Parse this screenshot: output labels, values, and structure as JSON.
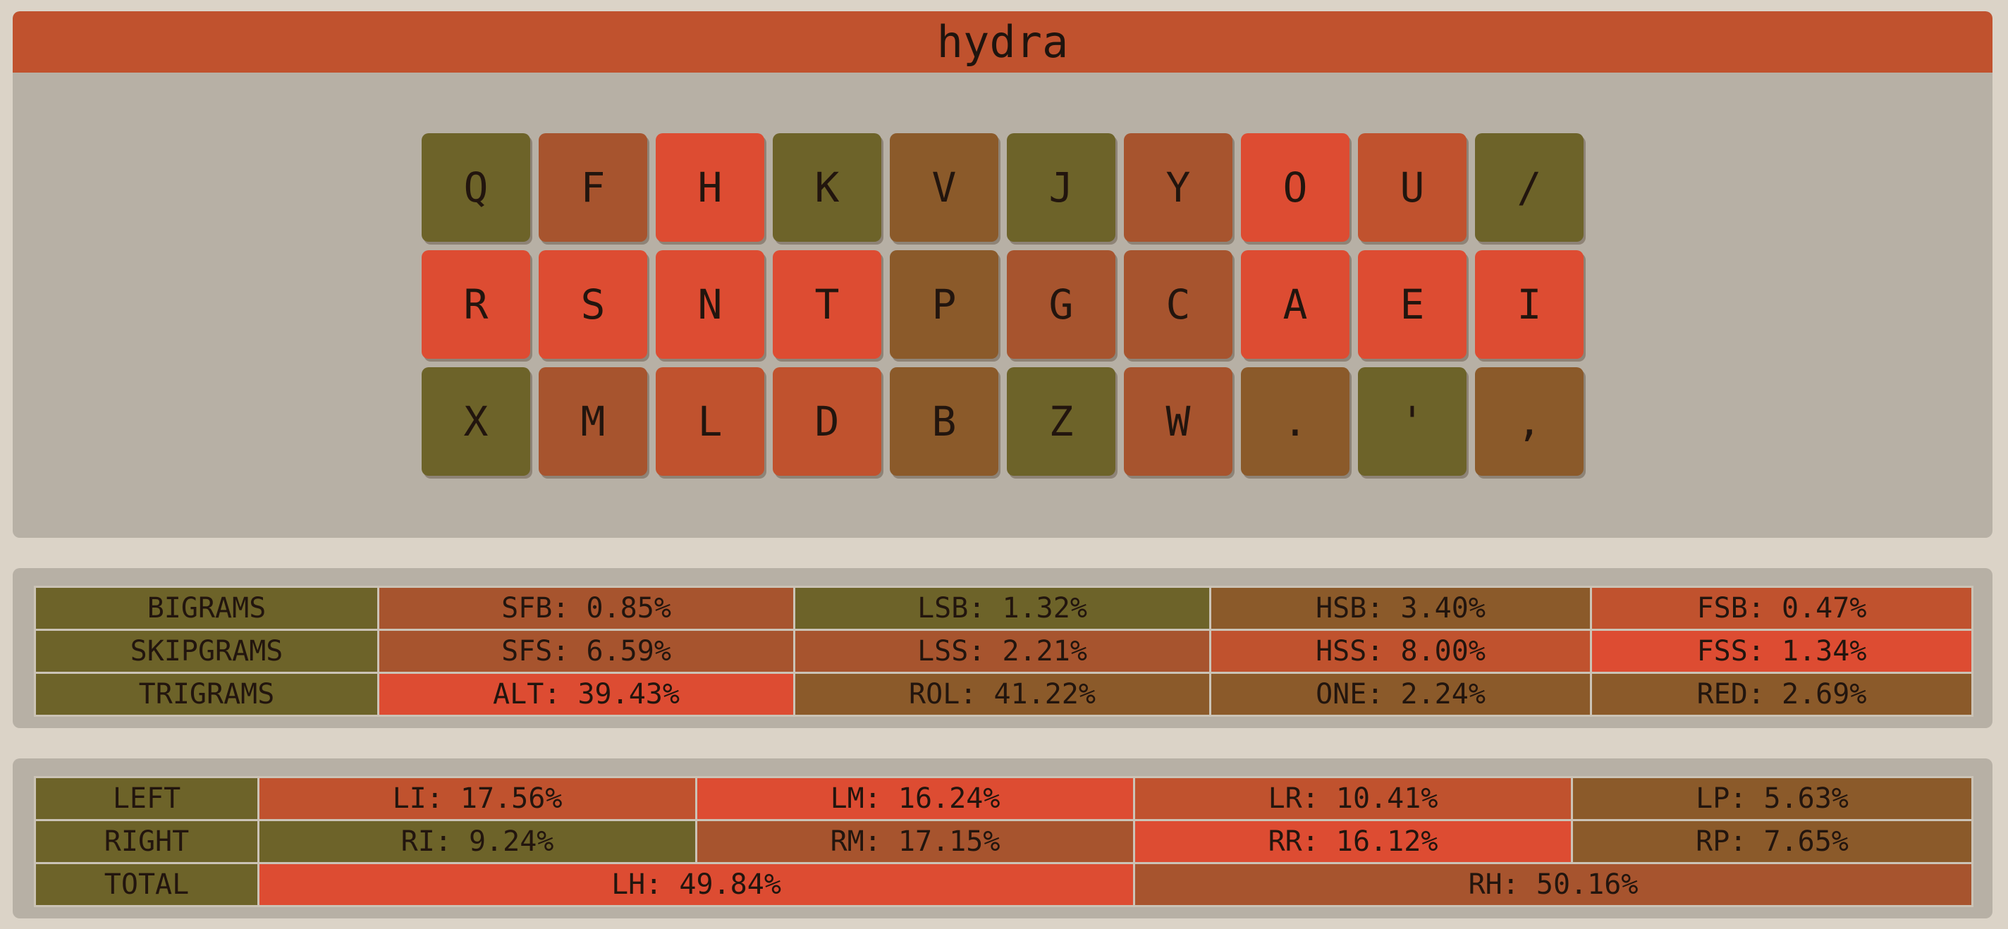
{
  "title": "hydra",
  "keyboard": {
    "rows": [
      [
        {
          "label": "Q",
          "color": "olive"
        },
        {
          "label": "F",
          "color": "rust"
        },
        {
          "label": "H",
          "color": "red"
        },
        {
          "label": "K",
          "color": "olive"
        },
        {
          "label": "V",
          "color": "brown"
        },
        {
          "label": "J",
          "color": "olive"
        },
        {
          "label": "Y",
          "color": "rust"
        },
        {
          "label": "O",
          "color": "red"
        },
        {
          "label": "U",
          "color": "burnt"
        },
        {
          "label": "/",
          "color": "olive"
        }
      ],
      [
        {
          "label": "R",
          "color": "red"
        },
        {
          "label": "S",
          "color": "red"
        },
        {
          "label": "N",
          "color": "red"
        },
        {
          "label": "T",
          "color": "red"
        },
        {
          "label": "P",
          "color": "brown"
        },
        {
          "label": "G",
          "color": "rust"
        },
        {
          "label": "C",
          "color": "rust"
        },
        {
          "label": "A",
          "color": "red"
        },
        {
          "label": "E",
          "color": "red"
        },
        {
          "label": "I",
          "color": "red"
        }
      ],
      [
        {
          "label": "X",
          "color": "olive"
        },
        {
          "label": "M",
          "color": "rust"
        },
        {
          "label": "L",
          "color": "burnt"
        },
        {
          "label": "D",
          "color": "burnt"
        },
        {
          "label": "B",
          "color": "brown"
        },
        {
          "label": "Z",
          "color": "olive"
        },
        {
          "label": "W",
          "color": "rust"
        },
        {
          "label": ".",
          "color": "brown"
        },
        {
          "label": "'",
          "color": "olive"
        },
        {
          "label": ",",
          "color": "brown"
        }
      ]
    ]
  },
  "colors": {
    "olive": "#6d6329",
    "brown": "#8b5a2a",
    "rust": "#a7542e",
    "burnt": "#c0522e",
    "red": "#dd4c32",
    "background": "#dbd3c7",
    "panel": "#b7b0a5"
  },
  "stats": {
    "rows": [
      {
        "label": "BIGRAMS",
        "cells": [
          {
            "text": "SFB: 0.85%",
            "color": "rust"
          },
          {
            "text": "LSB: 1.32%",
            "color": "olive"
          },
          {
            "text": "HSB: 3.40%",
            "color": "brown"
          },
          {
            "text": "FSB: 0.47%",
            "color": "burnt"
          }
        ]
      },
      {
        "label": "SKIPGRAMS",
        "cells": [
          {
            "text": "SFS: 6.59%",
            "color": "rust"
          },
          {
            "text": "LSS: 2.21%",
            "color": "rust"
          },
          {
            "text": "HSS: 8.00%",
            "color": "burnt"
          },
          {
            "text": "FSS: 1.34%",
            "color": "red"
          }
        ]
      },
      {
        "label": "TRIGRAMS",
        "cells": [
          {
            "text": "ALT: 39.43%",
            "color": "red"
          },
          {
            "text": "ROL: 41.22%",
            "color": "brown"
          },
          {
            "text": "ONE: 2.24%",
            "color": "brown"
          },
          {
            "text": "RED: 2.69%",
            "color": "brown"
          }
        ]
      }
    ]
  },
  "hands": {
    "rows": [
      {
        "label": "LEFT",
        "cells": [
          {
            "text": "LI: 17.56%",
            "color": "burnt"
          },
          {
            "text": "LM: 16.24%",
            "color": "red"
          },
          {
            "text": "LR: 10.41%",
            "color": "burnt"
          },
          {
            "text": "LP: 5.63%",
            "color": "brown"
          }
        ]
      },
      {
        "label": "RIGHT",
        "cells": [
          {
            "text": "RI: 9.24%",
            "color": "olive"
          },
          {
            "text": "RM: 17.15%",
            "color": "rust"
          },
          {
            "text": "RR: 16.12%",
            "color": "red"
          },
          {
            "text": "RP: 7.65%",
            "color": "brown"
          }
        ]
      },
      {
        "label": "TOTAL",
        "cells": [
          {
            "text": "LH: 49.84%",
            "color": "red"
          },
          {
            "text": "RH: 50.16%",
            "color": "rust"
          }
        ]
      }
    ]
  }
}
